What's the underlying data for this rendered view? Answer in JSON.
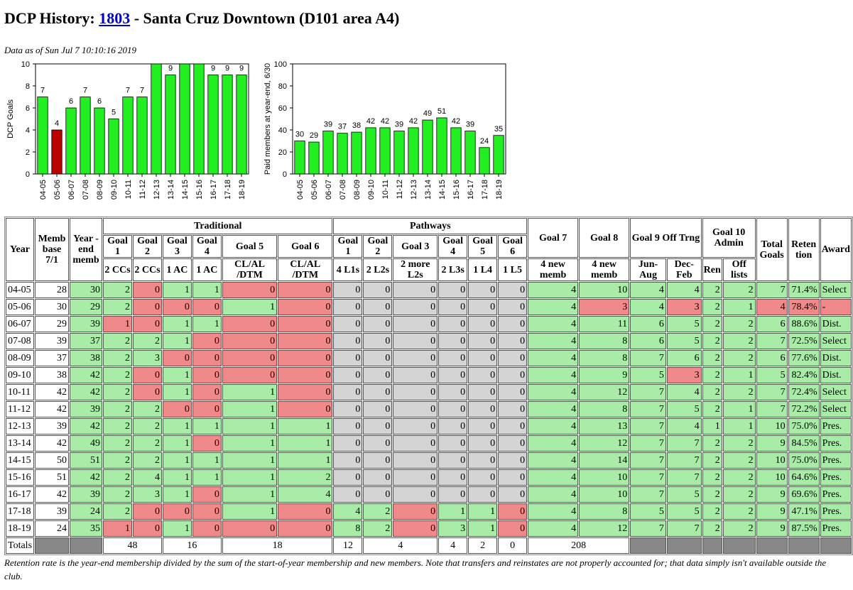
{
  "title": {
    "prefix": "DCP History: ",
    "club_number": "1803",
    "suffix": " - Santa Cruz Downtown (D101 area A4)"
  },
  "as_of": "Data as of Sun Jul 7 10:10:16 2019",
  "colors": {
    "met": "#a8eca8",
    "missed": "#f08a8a",
    "na": "#d4d4d4",
    "bar_green": "#22ee22",
    "bar_red": "#bb0000"
  },
  "chart_data": [
    {
      "type": "bar",
      "ylabel": "DCP Goals",
      "ylim": [
        0,
        10
      ],
      "yticks": [
        0,
        2,
        4,
        6,
        8,
        10
      ],
      "categories": [
        "04-05",
        "05-06",
        "06-07",
        "07-08",
        "08-09",
        "09-10",
        "10-11",
        "11-12",
        "12-13",
        "13-14",
        "14-15",
        "15-16",
        "16-17",
        "17-18",
        "18-19"
      ],
      "values": [
        7,
        4,
        6,
        7,
        6,
        5,
        7,
        7,
        10,
        9,
        10,
        10,
        9,
        9,
        9
      ],
      "labels": [
        "7",
        "4",
        "6",
        "7",
        "6",
        "5",
        "7",
        "7",
        "",
        "9",
        "",
        "",
        "9",
        "9",
        "9"
      ],
      "highlight": [
        false,
        true,
        false,
        false,
        false,
        false,
        false,
        false,
        false,
        false,
        false,
        false,
        false,
        false,
        false
      ]
    },
    {
      "type": "bar",
      "ylabel": "Paid members at year-end, 6/30",
      "ylim": [
        0,
        100
      ],
      "yticks": [
        0,
        20,
        40,
        60,
        80,
        100
      ],
      "categories": [
        "04-05",
        "05-06",
        "06-07",
        "07-08",
        "08-09",
        "09-10",
        "10-11",
        "11-12",
        "12-13",
        "13-14",
        "14-15",
        "15-16",
        "16-17",
        "17-18",
        "18-19"
      ],
      "values": [
        30,
        29,
        39,
        37,
        38,
        42,
        42,
        39,
        42,
        49,
        51,
        42,
        39,
        24,
        35
      ],
      "labels": [
        "30",
        "29",
        "39",
        "37",
        "38",
        "42",
        "42",
        "39",
        "42",
        "49",
        "51",
        "42",
        "39",
        "24",
        "35"
      ],
      "highlight": [
        false,
        false,
        false,
        false,
        false,
        false,
        false,
        false,
        false,
        false,
        false,
        false,
        false,
        false,
        false
      ]
    }
  ],
  "table": {
    "headers": {
      "year": "Year",
      "memb_base": "Memb base 7/1",
      "year_end_memb": "Year -end memb",
      "traditional": "Traditional",
      "pathways": "Pathways",
      "goal7": "Goal 7",
      "goal8": "Goal 8",
      "goal9": "Goal 9 Off Trng",
      "goal10": "Goal 10 Admin",
      "total_goals": "Total Goals",
      "retention": "Reten tion",
      "award": "Award",
      "trad_goals": [
        "Goal 1",
        "Goal 2",
        "Goal 3",
        "Goal 4",
        "Goal 5",
        "Goal 6"
      ],
      "trad_subs": [
        "2 CCs",
        "2 CCs",
        "1 AC",
        "1 AC",
        "CL/AL /DTM",
        "CL/AL /DTM"
      ],
      "path_goals": [
        "Goal 1",
        "Goal 2",
        "Goal 3",
        "Goal 4",
        "Goal 5",
        "Goal 6"
      ],
      "path_subs": [
        "4 L1s",
        "2 L2s",
        "2 more L2s",
        "2 L3s",
        "1 L4",
        "1 L5"
      ],
      "g7_sub": "4 new memb",
      "g8_sub": "4 new memb",
      "g9_subs": [
        "Jun-Aug",
        "Dec-Feb"
      ],
      "g10_subs": [
        "Ren",
        "Off lists"
      ]
    },
    "rows": [
      {
        "year": "04-05",
        "cells": [
          "28",
          "30",
          "2",
          "0",
          "1",
          "1",
          "0",
          "0",
          "0",
          "0",
          "0",
          "0",
          "0",
          "0",
          "4",
          "10",
          "4",
          "4",
          "2",
          "2",
          "7",
          "71.4%",
          "Select"
        ],
        "cls": [
          "n",
          "g",
          "g",
          "r",
          "g",
          "g",
          "r",
          "r",
          "gr",
          "gr",
          "gr",
          "gr",
          "gr",
          "gr",
          "g",
          "g",
          "g",
          "g",
          "g",
          "g",
          "g",
          "g",
          "g"
        ]
      },
      {
        "year": "05-06",
        "cells": [
          "30",
          "29",
          "2",
          "0",
          "0",
          "0",
          "1",
          "0",
          "0",
          "0",
          "0",
          "0",
          "0",
          "0",
          "4",
          "3",
          "4",
          "3",
          "2",
          "1",
          "4",
          "78.4%",
          "-"
        ],
        "cls": [
          "n",
          "g",
          "g",
          "r",
          "r",
          "r",
          "g",
          "r",
          "gr",
          "gr",
          "gr",
          "gr",
          "gr",
          "gr",
          "g",
          "r",
          "g",
          "r",
          "g",
          "g",
          "r",
          "r",
          "r"
        ]
      },
      {
        "year": "06-07",
        "cells": [
          "29",
          "39",
          "1",
          "0",
          "1",
          "1",
          "0",
          "0",
          "0",
          "0",
          "0",
          "0",
          "0",
          "0",
          "4",
          "11",
          "6",
          "5",
          "2",
          "2",
          "6",
          "88.6%",
          "Dist."
        ],
        "cls": [
          "n",
          "g",
          "r",
          "r",
          "g",
          "g",
          "r",
          "r",
          "gr",
          "gr",
          "gr",
          "gr",
          "gr",
          "gr",
          "g",
          "g",
          "g",
          "g",
          "g",
          "g",
          "g",
          "g",
          "g"
        ]
      },
      {
        "year": "07-08",
        "cells": [
          "39",
          "37",
          "2",
          "2",
          "1",
          "0",
          "0",
          "0",
          "0",
          "0",
          "0",
          "0",
          "0",
          "0",
          "4",
          "8",
          "6",
          "5",
          "2",
          "2",
          "7",
          "72.5%",
          "Select"
        ],
        "cls": [
          "n",
          "g",
          "g",
          "g",
          "g",
          "r",
          "r",
          "r",
          "gr",
          "gr",
          "gr",
          "gr",
          "gr",
          "gr",
          "g",
          "g",
          "g",
          "g",
          "g",
          "g",
          "g",
          "g",
          "g"
        ]
      },
      {
        "year": "08-09",
        "cells": [
          "37",
          "38",
          "2",
          "3",
          "0",
          "0",
          "0",
          "0",
          "0",
          "0",
          "0",
          "0",
          "0",
          "0",
          "4",
          "8",
          "7",
          "6",
          "2",
          "2",
          "6",
          "77.6%",
          "Dist."
        ],
        "cls": [
          "n",
          "g",
          "g",
          "g",
          "r",
          "r",
          "r",
          "r",
          "gr",
          "gr",
          "gr",
          "gr",
          "gr",
          "gr",
          "g",
          "g",
          "g",
          "g",
          "g",
          "g",
          "g",
          "g",
          "g"
        ]
      },
      {
        "year": "09-10",
        "cells": [
          "38",
          "42",
          "2",
          "0",
          "1",
          "0",
          "0",
          "0",
          "0",
          "0",
          "0",
          "0",
          "0",
          "0",
          "4",
          "9",
          "5",
          "3",
          "2",
          "1",
          "5",
          "82.4%",
          "Dist."
        ],
        "cls": [
          "n",
          "g",
          "g",
          "r",
          "g",
          "r",
          "r",
          "r",
          "gr",
          "gr",
          "gr",
          "gr",
          "gr",
          "gr",
          "g",
          "g",
          "g",
          "r",
          "g",
          "g",
          "g",
          "g",
          "g"
        ]
      },
      {
        "year": "10-11",
        "cells": [
          "42",
          "42",
          "2",
          "0",
          "1",
          "0",
          "1",
          "0",
          "0",
          "0",
          "0",
          "0",
          "0",
          "0",
          "4",
          "12",
          "7",
          "4",
          "2",
          "2",
          "7",
          "72.4%",
          "Select"
        ],
        "cls": [
          "n",
          "g",
          "g",
          "r",
          "g",
          "r",
          "g",
          "r",
          "gr",
          "gr",
          "gr",
          "gr",
          "gr",
          "gr",
          "g",
          "g",
          "g",
          "g",
          "g",
          "g",
          "g",
          "g",
          "g"
        ]
      },
      {
        "year": "11-12",
        "cells": [
          "42",
          "39",
          "2",
          "2",
          "0",
          "0",
          "1",
          "0",
          "0",
          "0",
          "0",
          "0",
          "0",
          "0",
          "4",
          "8",
          "7",
          "5",
          "2",
          "1",
          "7",
          "72.2%",
          "Select"
        ],
        "cls": [
          "n",
          "g",
          "g",
          "g",
          "r",
          "r",
          "g",
          "r",
          "gr",
          "gr",
          "gr",
          "gr",
          "gr",
          "gr",
          "g",
          "g",
          "g",
          "g",
          "g",
          "g",
          "g",
          "g",
          "g"
        ]
      },
      {
        "year": "12-13",
        "cells": [
          "39",
          "42",
          "2",
          "2",
          "1",
          "1",
          "1",
          "1",
          "0",
          "0",
          "0",
          "0",
          "0",
          "0",
          "4",
          "13",
          "7",
          "4",
          "1",
          "1",
          "10",
          "75.0%",
          "Pres."
        ],
        "cls": [
          "n",
          "g",
          "g",
          "g",
          "g",
          "g",
          "g",
          "g",
          "gr",
          "gr",
          "gr",
          "gr",
          "gr",
          "gr",
          "g",
          "g",
          "g",
          "g",
          "g",
          "g",
          "g",
          "g",
          "g"
        ]
      },
      {
        "year": "13-14",
        "cells": [
          "42",
          "49",
          "2",
          "2",
          "1",
          "0",
          "1",
          "1",
          "0",
          "0",
          "0",
          "0",
          "0",
          "0",
          "4",
          "12",
          "7",
          "7",
          "2",
          "2",
          "9",
          "84.5%",
          "Pres."
        ],
        "cls": [
          "n",
          "g",
          "g",
          "g",
          "g",
          "r",
          "g",
          "g",
          "gr",
          "gr",
          "gr",
          "gr",
          "gr",
          "gr",
          "g",
          "g",
          "g",
          "g",
          "g",
          "g",
          "g",
          "g",
          "g"
        ]
      },
      {
        "year": "14-15",
        "cells": [
          "50",
          "51",
          "2",
          "2",
          "1",
          "1",
          "1",
          "1",
          "0",
          "0",
          "0",
          "0",
          "0",
          "0",
          "4",
          "14",
          "7",
          "7",
          "2",
          "2",
          "10",
          "75.0%",
          "Pres."
        ],
        "cls": [
          "n",
          "g",
          "g",
          "g",
          "g",
          "g",
          "g",
          "g",
          "gr",
          "gr",
          "gr",
          "gr",
          "gr",
          "gr",
          "g",
          "g",
          "g",
          "g",
          "g",
          "g",
          "g",
          "g",
          "g"
        ]
      },
      {
        "year": "15-16",
        "cells": [
          "51",
          "42",
          "2",
          "4",
          "1",
          "1",
          "1",
          "2",
          "0",
          "0",
          "0",
          "0",
          "0",
          "0",
          "4",
          "10",
          "7",
          "7",
          "2",
          "2",
          "10",
          "64.6%",
          "Pres."
        ],
        "cls": [
          "n",
          "g",
          "g",
          "g",
          "g",
          "g",
          "g",
          "g",
          "gr",
          "gr",
          "gr",
          "gr",
          "gr",
          "gr",
          "g",
          "g",
          "g",
          "g",
          "g",
          "g",
          "g",
          "g",
          "g"
        ]
      },
      {
        "year": "16-17",
        "cells": [
          "42",
          "39",
          "2",
          "3",
          "1",
          "0",
          "1",
          "4",
          "0",
          "0",
          "0",
          "0",
          "0",
          "0",
          "4",
          "10",
          "7",
          "5",
          "2",
          "2",
          "9",
          "69.6%",
          "Pres."
        ],
        "cls": [
          "n",
          "g",
          "g",
          "g",
          "g",
          "r",
          "g",
          "g",
          "gr",
          "gr",
          "gr",
          "gr",
          "gr",
          "gr",
          "g",
          "g",
          "g",
          "g",
          "g",
          "g",
          "g",
          "g",
          "g"
        ]
      },
      {
        "year": "17-18",
        "cells": [
          "39",
          "24",
          "2",
          "0",
          "0",
          "0",
          "1",
          "0",
          "4",
          "2",
          "0",
          "1",
          "1",
          "0",
          "4",
          "8",
          "5",
          "5",
          "2",
          "2",
          "9",
          "47.1%",
          "Pres."
        ],
        "cls": [
          "n",
          "g",
          "g",
          "r",
          "r",
          "r",
          "g",
          "r",
          "g",
          "g",
          "r",
          "g",
          "g",
          "r",
          "g",
          "g",
          "g",
          "g",
          "g",
          "g",
          "g",
          "g",
          "g"
        ]
      },
      {
        "year": "18-19",
        "cells": [
          "24",
          "35",
          "1",
          "0",
          "1",
          "0",
          "0",
          "0",
          "8",
          "2",
          "0",
          "3",
          "1",
          "0",
          "4",
          "12",
          "7",
          "7",
          "2",
          "2",
          "9",
          "87.5%",
          "Pres."
        ],
        "cls": [
          "n",
          "g",
          "r",
          "r",
          "g",
          "r",
          "r",
          "r",
          "g",
          "g",
          "r",
          "g",
          "g",
          "r",
          "g",
          "g",
          "g",
          "g",
          "g",
          "g",
          "g",
          "g",
          "g"
        ]
      }
    ],
    "totals": {
      "label": "Totals",
      "trad_g12": "48",
      "trad_g34": "16",
      "trad_g56": "18",
      "path_g1": "12",
      "path_g23": "4",
      "path_g4": "4",
      "path_g5": "2",
      "path_g6": "0",
      "g78": "208"
    }
  },
  "footnote": "Retention rate is the year-end membership divided by the sum of the start-of-year membership and new members. Note that transfers and reinstates are not properly accounted for; that data simply isn't available outside the club."
}
